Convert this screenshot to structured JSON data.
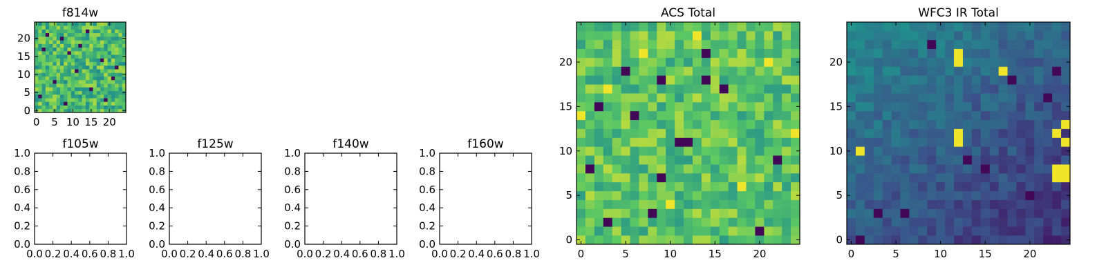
{
  "figure": {
    "colormap": "viridis",
    "colors": [
      "#440154",
      "#3b528b",
      "#21918c",
      "#5ec962",
      "#fde725"
    ]
  },
  "chart_data": [
    {
      "id": "f814w",
      "type": "heatmap",
      "title": "f814w",
      "xlim": [
        -0.5,
        24.5
      ],
      "ylim": [
        -0.5,
        24.5
      ],
      "xticks": [
        0,
        5,
        10,
        15,
        20
      ],
      "yticks": [
        0,
        5,
        10,
        15,
        20
      ],
      "xticklabels": [
        "0",
        "5",
        "10",
        "15",
        "20"
      ],
      "yticklabels": [
        "0",
        "5",
        "10",
        "15",
        "20"
      ],
      "grid_size": [
        25,
        25
      ],
      "value_range": [
        0,
        1
      ],
      "mean": 0.68,
      "spread": 0.2,
      "dark_pixels": [
        [
          3,
          21
        ],
        [
          7,
          20
        ],
        [
          14,
          22
        ],
        [
          2,
          17
        ],
        [
          9,
          16
        ],
        [
          18,
          14
        ],
        [
          11,
          11
        ],
        [
          21,
          9
        ],
        [
          5,
          8
        ],
        [
          15,
          6
        ],
        [
          1,
          4
        ],
        [
          19,
          3
        ],
        [
          8,
          2
        ],
        [
          22,
          12
        ],
        [
          12,
          18
        ]
      ],
      "bright_pixels": [],
      "trend": "none"
    },
    {
      "id": "f105w",
      "type": "empty",
      "title": "f105w",
      "xlim": [
        0,
        1
      ],
      "ylim": [
        0,
        1
      ],
      "xticks": [
        0,
        0.2,
        0.4,
        0.6,
        0.8,
        1.0
      ],
      "yticks": [
        0,
        0.2,
        0.4,
        0.6,
        0.8,
        1.0
      ],
      "xticklabels": [
        "0.0",
        "0.2",
        "0.4",
        "0.6",
        "0.8",
        "1.0"
      ],
      "yticklabels": [
        "0.0",
        "0.2",
        "0.4",
        "0.6",
        "0.8",
        "1.0"
      ]
    },
    {
      "id": "f125w",
      "type": "empty",
      "title": "f125w",
      "xlim": [
        0,
        1
      ],
      "ylim": [
        0,
        1
      ],
      "xticks": [
        0,
        0.2,
        0.4,
        0.6,
        0.8,
        1.0
      ],
      "yticks": [
        0,
        0.2,
        0.4,
        0.6,
        0.8,
        1.0
      ],
      "xticklabels": [
        "0.0",
        "0.2",
        "0.4",
        "0.6",
        "0.8",
        "1.0"
      ],
      "yticklabels": [
        "0.0",
        "0.2",
        "0.4",
        "0.6",
        "0.8",
        "1.0"
      ]
    },
    {
      "id": "f140w",
      "type": "empty",
      "title": "f140w",
      "xlim": [
        0,
        1
      ],
      "ylim": [
        0,
        1
      ],
      "xticks": [
        0,
        0.2,
        0.4,
        0.6,
        0.8,
        1.0
      ],
      "yticks": [
        0,
        0.2,
        0.4,
        0.6,
        0.8,
        1.0
      ],
      "xticklabels": [
        "0.0",
        "0.2",
        "0.4",
        "0.6",
        "0.8",
        "1.0"
      ],
      "yticklabels": [
        "0.0",
        "0.2",
        "0.4",
        "0.6",
        "0.8",
        "1.0"
      ]
    },
    {
      "id": "f160w",
      "type": "empty",
      "title": "f160w",
      "xlim": [
        0,
        1
      ],
      "ylim": [
        0,
        1
      ],
      "xticks": [
        0,
        0.2,
        0.4,
        0.6,
        0.8,
        1.0
      ],
      "yticks": [
        0,
        0.2,
        0.4,
        0.6,
        0.8,
        1.0
      ],
      "xticklabels": [
        "0.0",
        "0.2",
        "0.4",
        "0.6",
        "0.8",
        "1.0"
      ],
      "yticklabels": [
        "0.0",
        "0.2",
        "0.4",
        "0.6",
        "0.8",
        "1.0"
      ]
    },
    {
      "id": "acs-total",
      "type": "heatmap",
      "title": "ACS Total",
      "xlim": [
        -0.5,
        24.5
      ],
      "ylim": [
        -0.5,
        24.5
      ],
      "xticks": [
        0,
        5,
        10,
        15,
        20
      ],
      "yticks": [
        0,
        5,
        10,
        15,
        20
      ],
      "xticklabels": [
        "0",
        "5",
        "10",
        "15",
        "20"
      ],
      "yticklabels": [
        "0",
        "5",
        "10",
        "15",
        "20"
      ],
      "grid_size": [
        25,
        25
      ],
      "value_range": [
        0,
        1
      ],
      "mean": 0.72,
      "spread": 0.17,
      "dark_pixels": [
        [
          14,
          21
        ],
        [
          9,
          18
        ],
        [
          14,
          18
        ],
        [
          16,
          17
        ],
        [
          2,
          15
        ],
        [
          6,
          14
        ],
        [
          11,
          11
        ],
        [
          12,
          11
        ],
        [
          1,
          8
        ],
        [
          9,
          7
        ],
        [
          8,
          3
        ],
        [
          3,
          2
        ],
        [
          20,
          1
        ],
        [
          5,
          19
        ],
        [
          22,
          9
        ]
      ],
      "bright_pixels": [
        [
          13,
          23
        ],
        [
          7,
          21
        ],
        [
          21,
          20
        ],
        [
          3,
          17
        ],
        [
          24,
          12
        ],
        [
          0,
          14
        ],
        [
          10,
          4
        ],
        [
          18,
          6
        ]
      ],
      "trend": "none"
    },
    {
      "id": "wfc3-ir-total",
      "type": "heatmap",
      "title": "WFC3 IR Total",
      "xlim": [
        -0.5,
        24.5
      ],
      "ylim": [
        -0.5,
        24.5
      ],
      "xticks": [
        0,
        5,
        10,
        15,
        20
      ],
      "yticks": [
        0,
        5,
        10,
        15,
        20
      ],
      "xticklabels": [
        "0",
        "5",
        "10",
        "15",
        "20"
      ],
      "yticklabels": [
        "0",
        "5",
        "10",
        "15",
        "20"
      ],
      "grid_size": [
        25,
        25
      ],
      "value_range": [
        0,
        1
      ],
      "mean": 0.3,
      "spread": 0.08,
      "dark_pixels": [
        [
          1,
          0
        ],
        [
          6,
          3
        ],
        [
          3,
          3
        ],
        [
          20,
          5
        ],
        [
          15,
          8
        ],
        [
          22,
          16
        ],
        [
          18,
          18
        ],
        [
          23,
          19
        ],
        [
          13,
          9
        ],
        [
          9,
          22
        ]
      ],
      "bright_pixels": [
        [
          12,
          20
        ],
        [
          12,
          21
        ],
        [
          17,
          19
        ],
        [
          12,
          12
        ],
        [
          12,
          11
        ],
        [
          23,
          12
        ],
        [
          24,
          11
        ],
        [
          24,
          13
        ],
        [
          23,
          7
        ],
        [
          24,
          7
        ],
        [
          23,
          8
        ],
        [
          24,
          8
        ],
        [
          1,
          10
        ]
      ],
      "trend": "top-left-high"
    }
  ]
}
